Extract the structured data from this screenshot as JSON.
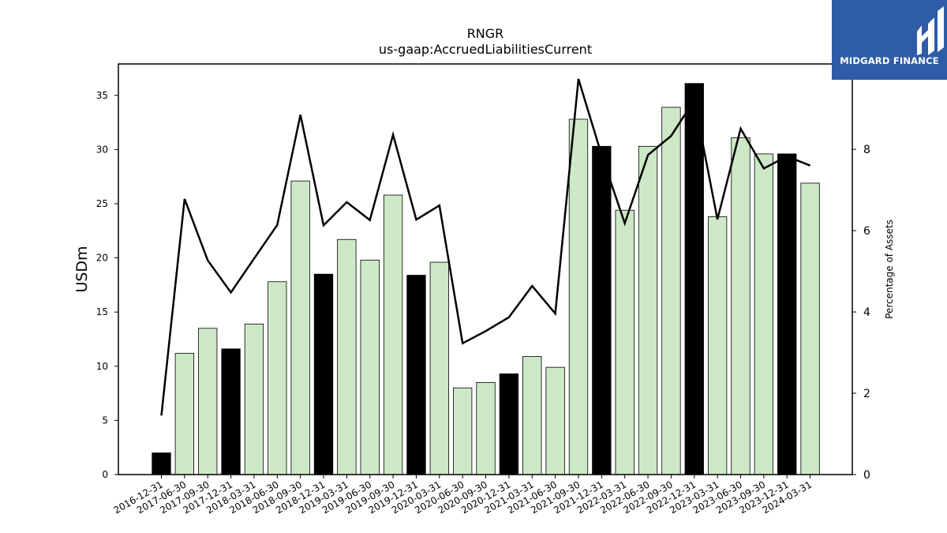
{
  "chart_data": {
    "type": "bar",
    "title": "RNGR",
    "subtitle": "us-gaap:AccruedLiabilitiesCurrent",
    "ylabel": "USDm",
    "y2label": "Percentage of Assets",
    "ylim": [
      0,
      37.9
    ],
    "y2lim": [
      0,
      10.1
    ],
    "yticks": [
      0,
      5,
      10,
      15,
      20,
      25,
      30,
      35
    ],
    "y2ticks": [
      0,
      2,
      4,
      6,
      8
    ],
    "categories": [
      "2016-12-31",
      "2017-06-30",
      "2017-09-30",
      "2017-12-31",
      "2018-03-31",
      "2018-06-30",
      "2018-09-30",
      "2018-12-31",
      "2019-03-31",
      "2019-06-30",
      "2019-09-30",
      "2019-12-31",
      "2020-03-31",
      "2020-06-30",
      "2020-09-30",
      "2020-12-31",
      "2021-03-31",
      "2021-06-30",
      "2021-09-30",
      "2021-12-31",
      "2022-03-31",
      "2022-06-30",
      "2022-09-30",
      "2022-12-31",
      "2023-03-31",
      "2023-06-30",
      "2023-09-30",
      "2023-12-31",
      "2024-03-31"
    ],
    "series": [
      {
        "type": "bar",
        "values": [
          2.0,
          11.2,
          13.5,
          11.6,
          13.9,
          17.8,
          27.1,
          18.5,
          21.7,
          19.8,
          25.8,
          18.4,
          19.6,
          8.0,
          8.5,
          9.3,
          10.9,
          9.9,
          32.8,
          30.3,
          24.4,
          30.3,
          33.9,
          36.1,
          23.8,
          31.1,
          29.6,
          29.6,
          26.9
        ],
        "highlight": [
          true,
          false,
          false,
          true,
          false,
          false,
          false,
          true,
          false,
          false,
          false,
          true,
          false,
          false,
          false,
          true,
          false,
          false,
          false,
          true,
          false,
          false,
          false,
          true,
          false,
          false,
          false,
          true,
          false
        ],
        "color": "#cde8c6",
        "highlight_color": "#000000"
      },
      {
        "type": "line",
        "axis": "right",
        "values": [
          1.45,
          6.78,
          5.27,
          4.48,
          5.31,
          6.14,
          8.85,
          6.13,
          6.7,
          6.26,
          8.36,
          6.27,
          6.62,
          3.23,
          3.53,
          3.87,
          4.64,
          3.96,
          9.73,
          7.86,
          6.18,
          7.86,
          8.33,
          9.21,
          6.28,
          8.51,
          7.53,
          7.83,
          7.6
        ],
        "color": "#000000"
      }
    ]
  },
  "logo": {
    "text": "MIDGARD FINANCE"
  }
}
